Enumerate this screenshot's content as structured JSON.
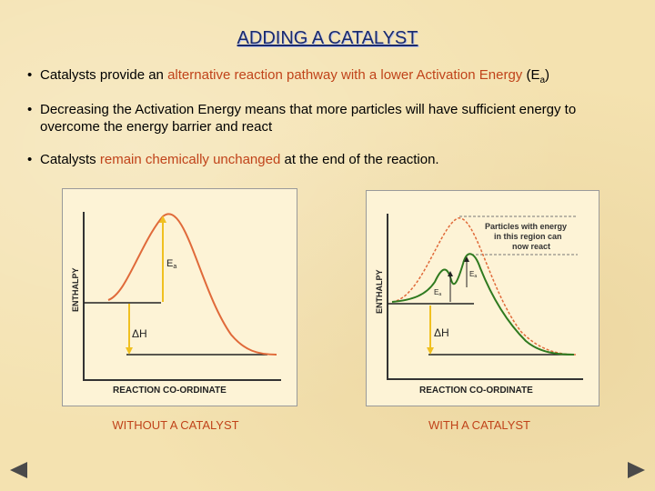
{
  "slide": {
    "title": "ADDING A CATALYST",
    "bullets": [
      {
        "p1": "Catalysts provide an ",
        "hl": "alternative reaction pathway with a lower Activation Energy",
        "p2": " (E",
        "sub": "a",
        "p3": ")"
      },
      {
        "text": "Decreasing the Activation Energy means that more particles will have sufficient energy to overcome the energy barrier and react"
      },
      {
        "p1": "Catalysts ",
        "hl": "remain chemically unchanged",
        "p2": " at the end of the reaction."
      }
    ]
  },
  "diagram_left": {
    "ylabel": "ENTHALPY",
    "xlabel": "REACTION CO-ORDINATE",
    "ea_label": "E",
    "ea_sub": "a",
    "dh_label": "ΔH",
    "caption": "WITHOUT A CATALYST"
  },
  "diagram_right": {
    "ylabel": "ENTHALPY",
    "xlabel": "REACTION CO-ORDINATE",
    "ea_label": "E",
    "ea_sub": "a",
    "ea2_label": "E",
    "ea2_sub": "a",
    "dh_label": "ΔH",
    "note_line1": "Particles with energy",
    "note_line2": "in this region can",
    "note_line3": "now react",
    "caption": "WITH A CATALYST"
  },
  "nav": {
    "prev_icon": "triangle-left-icon",
    "next_icon": "triangle-right-icon"
  },
  "colors": {
    "title": "#1a2a6c",
    "highlight": "#c0431a",
    "uncatalysed_curve": "#e06a3a",
    "catalysed_curve": "#2f7a1f",
    "arrow": "#f0c020"
  }
}
